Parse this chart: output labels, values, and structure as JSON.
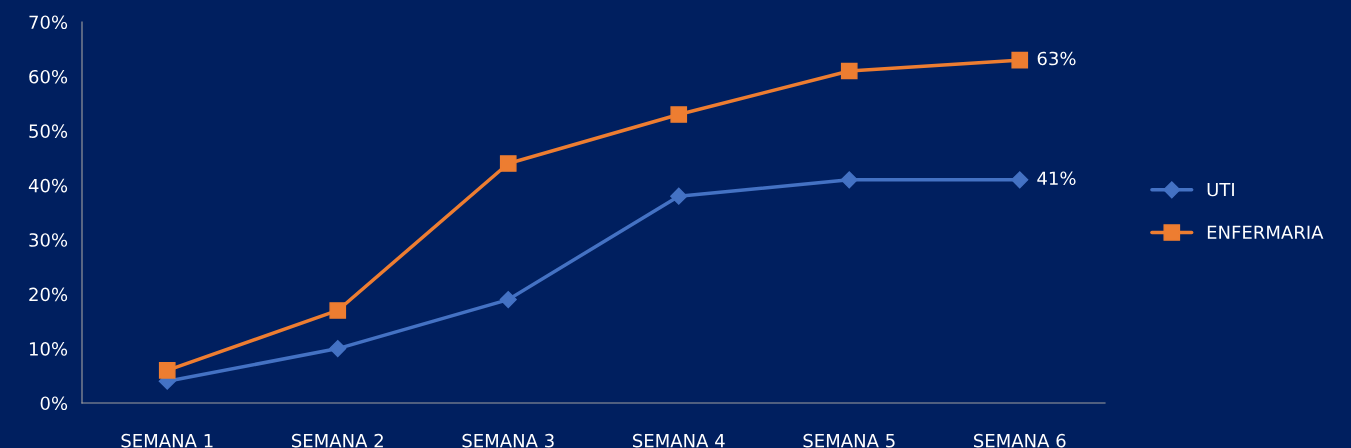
{
  "chart_data": {
    "type": "line",
    "categories": [
      "SEMANA 1",
      "SEMANA 2",
      "SEMANA 3",
      "SEMANA 4",
      "SEMANA 5",
      "SEMANA 6"
    ],
    "series": [
      {
        "name": "UTI",
        "color": "#4472c4",
        "marker": "diamond",
        "values": [
          4,
          10,
          19,
          38,
          41,
          41
        ],
        "value_labels": [
          null,
          null,
          null,
          null,
          null,
          "41%"
        ]
      },
      {
        "name": "ENFERMARIA",
        "color": "#ed7d31",
        "marker": "square",
        "values": [
          6,
          17,
          44,
          53,
          61,
          63
        ],
        "value_labels": [
          null,
          null,
          null,
          null,
          null,
          "63%"
        ]
      }
    ],
    "ylim": [
      0,
      70
    ],
    "yticks": [
      {
        "value": 0,
        "label": "0%"
      },
      {
        "value": 10,
        "label": "10%"
      },
      {
        "value": 20,
        "label": "20%"
      },
      {
        "value": 30,
        "label": "30%"
      },
      {
        "value": 40,
        "label": "40%"
      },
      {
        "value": 50,
        "label": "50%"
      },
      {
        "value": 60,
        "label": "60%"
      },
      {
        "value": 70,
        "label": "70%"
      }
    ],
    "grid": false,
    "legend": "right",
    "line_style": "solid"
  }
}
